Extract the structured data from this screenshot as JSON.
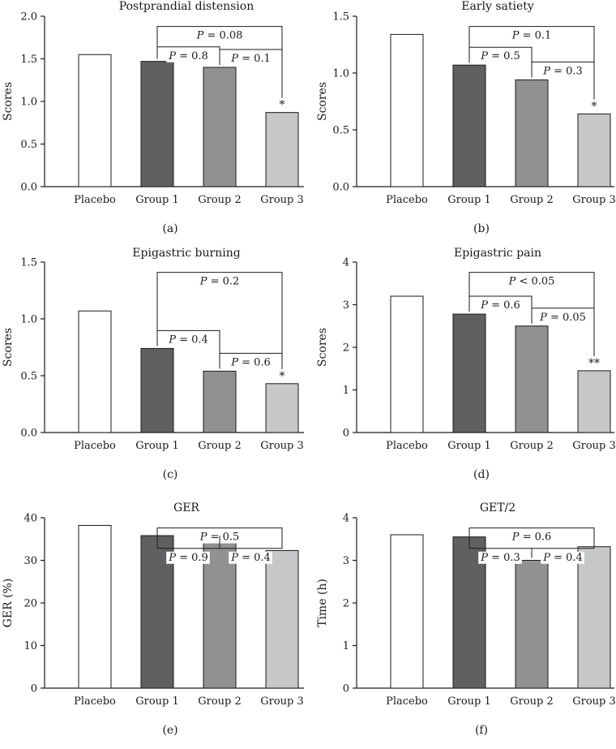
{
  "colors": {
    "placebo": "#ffffff",
    "group1": "#5f6062",
    "group2": "#909193",
    "group3": "#c6c7c9",
    "stroke": "#1a1a1a"
  },
  "chart_data": [
    {
      "type": "bar",
      "title": "Postprandial distension",
      "caption": "(a)",
      "ylabel": "Scores",
      "ylim": [
        0,
        2.0
      ],
      "yticks": [
        "0.0",
        "0.5",
        "1.0",
        "1.5",
        "2.0"
      ],
      "categories": [
        "Placebo",
        "Group 1",
        "Group 2",
        "Group 3"
      ],
      "values": [
        1.55,
        1.47,
        1.4,
        0.87
      ],
      "significance": [
        "",
        "",
        "",
        "*"
      ],
      "comparisons": [
        {
          "from": 1,
          "to": 2,
          "label": "P = 0.8"
        },
        {
          "from": 2,
          "to": 3,
          "label": "P = 0.1"
        },
        {
          "from": 1,
          "to": 3,
          "label": "P = 0.08"
        }
      ]
    },
    {
      "type": "bar",
      "title": "Early satiety",
      "caption": "(b)",
      "ylabel": "Scores",
      "ylim": [
        0,
        1.5
      ],
      "yticks": [
        "0.0",
        "0.5",
        "1.0",
        "1.5"
      ],
      "categories": [
        "Placebo",
        "Group 1",
        "Group 2",
        "Group 3"
      ],
      "values": [
        1.34,
        1.07,
        0.94,
        0.64
      ],
      "significance": [
        "",
        "",
        "",
        "*"
      ],
      "comparisons": [
        {
          "from": 1,
          "to": 2,
          "label": "P = 0.5"
        },
        {
          "from": 2,
          "to": 3,
          "label": "P = 0.3"
        },
        {
          "from": 1,
          "to": 3,
          "label": "P = 0.1"
        }
      ]
    },
    {
      "type": "bar",
      "title": "Epigastric burning",
      "caption": "(c)",
      "ylabel": "Scores",
      "ylim": [
        0,
        1.5
      ],
      "yticks": [
        "0.0",
        "0.5",
        "1.0",
        "1.5"
      ],
      "categories": [
        "Placebo",
        "Group 1",
        "Group 2",
        "Group 3"
      ],
      "values": [
        1.07,
        0.74,
        0.54,
        0.43
      ],
      "significance": [
        "",
        "",
        "",
        "*"
      ],
      "comparisons": [
        {
          "from": 1,
          "to": 2,
          "label": "P = 0.4"
        },
        {
          "from": 2,
          "to": 3,
          "label": "P = 0.6"
        },
        {
          "from": 1,
          "to": 3,
          "label": "P = 0.2"
        }
      ]
    },
    {
      "type": "bar",
      "title": "Epigastric pain",
      "caption": "(d)",
      "ylabel": "Scores",
      "ylim": [
        0,
        4
      ],
      "yticks": [
        "0",
        "1",
        "2",
        "3",
        "4"
      ],
      "categories": [
        "Placebo",
        "Group 1",
        "Group 2",
        "Group 3"
      ],
      "values": [
        3.2,
        2.78,
        2.5,
        1.45
      ],
      "significance": [
        "",
        "",
        "",
        "**"
      ],
      "comparisons": [
        {
          "from": 1,
          "to": 2,
          "label": "P = 0.6"
        },
        {
          "from": 2,
          "to": 3,
          "label": "P = 0.05"
        },
        {
          "from": 1,
          "to": 3,
          "label": "P < 0.05"
        }
      ]
    },
    {
      "type": "bar",
      "title": "GER",
      "caption": "(e)",
      "ylabel": "GER (%)",
      "ylim": [
        0,
        40
      ],
      "yticks": [
        "0",
        "10",
        "20",
        "30",
        "40"
      ],
      "categories": [
        "Placebo",
        "Group 1",
        "Group 2",
        "Group 3"
      ],
      "values": [
        38.2,
        35.8,
        35.2,
        32.3
      ],
      "significance": [
        "",
        "",
        "",
        ""
      ],
      "comparisons": [
        {
          "from": 1,
          "to": 2,
          "label": "P = 0.9"
        },
        {
          "from": 2,
          "to": 3,
          "label": "P = 0.4"
        },
        {
          "from": 1,
          "to": 3,
          "label": "P = 0.5"
        }
      ]
    },
    {
      "type": "bar",
      "title": "GET/2",
      "caption": "(f)",
      "ylabel": "Time (h)",
      "ylim": [
        0,
        4
      ],
      "yticks": [
        "0",
        "1",
        "2",
        "3",
        "4"
      ],
      "categories": [
        "Placebo",
        "Group 1",
        "Group 2",
        "Group 3"
      ],
      "values": [
        3.6,
        3.55,
        3.0,
        3.32
      ],
      "significance": [
        "",
        "",
        "",
        ""
      ],
      "comparisons": [
        {
          "from": 1,
          "to": 2,
          "label": "P = 0.3"
        },
        {
          "from": 2,
          "to": 3,
          "label": "P = 0.4"
        },
        {
          "from": 1,
          "to": 3,
          "label": "P = 0.6"
        }
      ]
    }
  ]
}
